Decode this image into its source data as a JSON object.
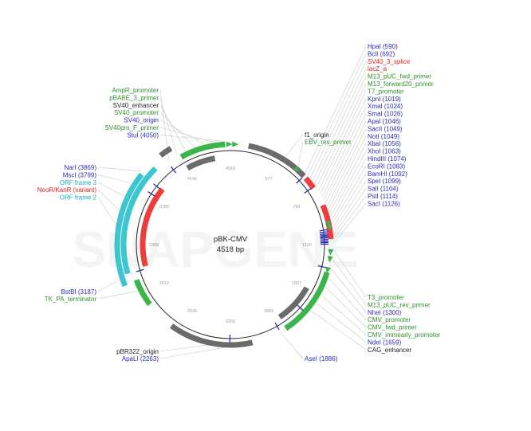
{
  "plasmid": {
    "name": "pBK-CMV",
    "size_label": "4518 bp",
    "length": 4518
  },
  "watermark": "SNAPGENE",
  "colors": {
    "blue": "#2b2bb8",
    "green": "#2f8f2f",
    "red": "#e02020",
    "cyan": "#1aabb8",
    "feature_green": "#39b54a",
    "feature_grey": "#6b6b6b",
    "feature_red": "#ee3b3b",
    "feature_cyan": "#3cc6cf",
    "backbone": "#222222",
    "leader": "#c8c8c8"
  },
  "ticks": [
    "4518",
    "377",
    "754",
    "1130",
    "1507",
    "1883",
    "2260",
    "2636",
    "3012",
    "3389",
    "3765",
    "4142"
  ],
  "labels_right_top": [
    {
      "text": "HpaI (590)",
      "color": "blue"
    },
    {
      "text": "BclI (692)",
      "color": "blue"
    },
    {
      "text": "SV40_3_splice",
      "color": "red"
    },
    {
      "text": "lacZ_a",
      "color": "red"
    },
    {
      "text": "M13_pUC_fwd_primer",
      "color": "green"
    },
    {
      "text": "M13_forward20_primer",
      "color": "green"
    },
    {
      "text": "T7_promoter",
      "color": "green"
    },
    {
      "text": "KpnI (1019)",
      "color": "blue"
    },
    {
      "text": "XmaI (1024)",
      "color": "blue"
    },
    {
      "text": "SmaI (1026)",
      "color": "blue"
    },
    {
      "text": "ApaI (1046)",
      "color": "blue"
    },
    {
      "text": "SacII (1049)",
      "color": "blue"
    },
    {
      "text": "NotI (1049)",
      "color": "blue"
    },
    {
      "text": "XbaI (1056)",
      "color": "blue"
    },
    {
      "text": "XhoI (1063)",
      "color": "blue"
    },
    {
      "text": "HindIII (1074)",
      "color": "blue"
    },
    {
      "text": "EcoRI (1083)",
      "color": "blue"
    },
    {
      "text": "BamHI (1092)",
      "color": "blue"
    },
    {
      "text": "SpeI (1099)",
      "color": "blue"
    },
    {
      "text": "SalI (1104)",
      "color": "blue"
    },
    {
      "text": "PstI (1114)",
      "color": "blue"
    },
    {
      "text": "SacI (1126)",
      "color": "blue"
    }
  ],
  "labels_right_bottom": [
    {
      "text": "T3_promoter",
      "color": "green"
    },
    {
      "text": "M13_pUC_rev_primer",
      "color": "green"
    },
    {
      "text": "NheI (1300)",
      "color": "blue"
    },
    {
      "text": "CMV_promoter",
      "color": "green"
    },
    {
      "text": "CMV_fwd_primer",
      "color": "green"
    },
    {
      "text": "CMV_immearly_promoter",
      "color": "green"
    },
    {
      "text": "NdeI (1659)",
      "color": "blue"
    },
    {
      "text": "CAG_enhancer",
      "color": "backbone"
    }
  ],
  "labels_top_left": [
    {
      "text": "AmpR_promoter",
      "color": "green"
    },
    {
      "text": "pBABE_3_primer",
      "color": "green"
    },
    {
      "text": "SV40_enhancer",
      "color": "backbone"
    },
    {
      "text": "SV40_promoter",
      "color": "green"
    },
    {
      "text": "SV40_origin",
      "color": "blue"
    },
    {
      "text": "SV40pro_F_primer",
      "color": "green"
    },
    {
      "text": "StuI (4050)",
      "color": "blue"
    }
  ],
  "labels_left": [
    {
      "text": "NarI (3869)",
      "color": "blue"
    },
    {
      "text": "MscI (3799)",
      "color": "blue"
    },
    {
      "text": "ORF frame 3",
      "color": "cyan"
    },
    {
      "text": "NeoR/KanR (variant)",
      "color": "red"
    },
    {
      "text": "ORF frame 2",
      "color": "cyan"
    }
  ],
  "labels_misc": [
    {
      "text": "f1_origin",
      "color": "backbone"
    },
    {
      "text": "EBV_rev_primer",
      "color": "green"
    },
    {
      "text": "BstBI (3187)",
      "color": "blue"
    },
    {
      "text": "TK_PA_terminator",
      "color": "green"
    },
    {
      "text": "pBR322_origin",
      "color": "backbone"
    },
    {
      "text": "ApaLI (2263)",
      "color": "blue"
    },
    {
      "text": "AseI (1886)",
      "color": "blue"
    }
  ],
  "features": [
    {
      "name": "f1_origin",
      "start": 130,
      "end": 590,
      "ring": "outer",
      "color": "feature_grey"
    },
    {
      "name": "SV40_3_splice",
      "start": 610,
      "end": 700,
      "ring": "outer",
      "color": "feature_red"
    },
    {
      "name": "lacZ_a",
      "start": 840,
      "end": 1090,
      "ring": "outer",
      "color": "feature_red"
    },
    {
      "name": "CMV_promoter",
      "start": 1330,
      "end": 1840,
      "ring": "outer",
      "color": "feature_green"
    },
    {
      "name": "CAG_enhancer",
      "start": 1500,
      "end": 1830,
      "ring": "inner",
      "color": "feature_grey"
    },
    {
      "name": "pBR322_origin",
      "start": 2100,
      "end": 2710,
      "ring": "outer",
      "color": "feature_grey"
    },
    {
      "name": "TK_PA_terminator",
      "start": 2930,
      "end": 3130,
      "ring": "outer",
      "color": "feature_green"
    },
    {
      "name": "ORF frame 2",
      "start": 3120,
      "end": 3870,
      "ring": "far",
      "color": "feature_cyan"
    },
    {
      "name": "ORF frame 3",
      "start": 3190,
      "end": 3960,
      "ring": "mid",
      "color": "feature_cyan"
    },
    {
      "name": "NeoR/KanR (variant)",
      "start": 3210,
      "end": 3880,
      "ring": "inner",
      "color": "feature_red"
    },
    {
      "name": "SV40_promoter",
      "start": 4150,
      "end": 4480,
      "ring": "outer",
      "color": "feature_green"
    },
    {
      "name": "SV40_enhancer",
      "start": 4150,
      "end": 4390,
      "ring": "inner",
      "color": "feature_grey"
    },
    {
      "name": "AmpR_promoter",
      "start": 4040,
      "end": 4120,
      "ring": "far",
      "color": "feature_grey"
    }
  ],
  "arrows": [
    {
      "name": "EBV_rev_primer",
      "pos": 520
    },
    {
      "name": "T7_promoter",
      "pos": 975
    },
    {
      "name": "M13_pUC_fwd_primer",
      "pos": 1005
    },
    {
      "name": "T3_promoter",
      "pos": 1180
    },
    {
      "name": "M13_pUC_rev_primer",
      "pos": 1230
    },
    {
      "name": "CMV_fwd_primer",
      "pos": 1310
    },
    {
      "name": "pBABE_3_primer",
      "pos": 4505
    },
    {
      "name": "SV40pro_F_primer",
      "pos": 30
    }
  ],
  "sites": [
    {
      "name": "HpaI",
      "pos": 590
    },
    {
      "name": "BclI",
      "pos": 692
    },
    {
      "name": "mcs",
      "pos": 1020
    },
    {
      "name": "mcs",
      "pos": 1035
    },
    {
      "name": "mcs",
      "pos": 1050
    },
    {
      "name": "mcs",
      "pos": 1060
    },
    {
      "name": "mcs",
      "pos": 1070
    },
    {
      "name": "mcs",
      "pos": 1080
    },
    {
      "name": "mcs",
      "pos": 1092
    },
    {
      "name": "mcs",
      "pos": 1104
    },
    {
      "name": "mcs",
      "pos": 1114
    },
    {
      "name": "mcs",
      "pos": 1126
    },
    {
      "name": "NheI",
      "pos": 1300
    },
    {
      "name": "NdeI",
      "pos": 1659
    },
    {
      "name": "AseI",
      "pos": 1886
    },
    {
      "name": "ApaLI",
      "pos": 2263
    },
    {
      "name": "BstBI",
      "pos": 3187
    },
    {
      "name": "MscI",
      "pos": 3799
    },
    {
      "name": "NarI",
      "pos": 3869
    },
    {
      "name": "StuI",
      "pos": 4050
    }
  ]
}
